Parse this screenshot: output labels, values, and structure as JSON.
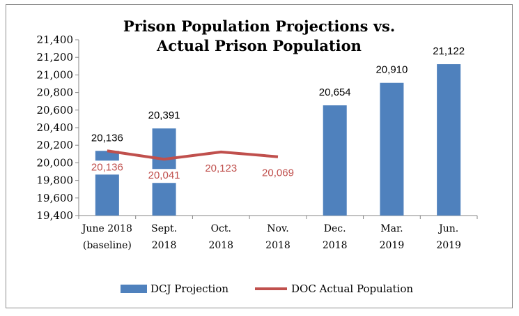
{
  "chart_data": {
    "type": "bar",
    "title_line1": "Prison Population Projections vs.",
    "title_line2": "Actual Prison Population",
    "xlabel": "",
    "ylabel": "",
    "ylim": [
      19400,
      21400
    ],
    "ytick_step": 200,
    "yticks": [
      "19,400",
      "19,600",
      "19,800",
      "20,000",
      "20,200",
      "20,400",
      "20,600",
      "20,800",
      "21,000",
      "21,200",
      "21,400"
    ],
    "categories": [
      {
        "line1": "June 2018",
        "line2": "(baseline)"
      },
      {
        "line1": "Sept.",
        "line2": "2018"
      },
      {
        "line1": "Oct.",
        "line2": "2018"
      },
      {
        "line1": "Nov.",
        "line2": "2018"
      },
      {
        "line1": "Dec.",
        "line2": "2018"
      },
      {
        "line1": "Mar.",
        "line2": "2019"
      },
      {
        "line1": "Jun.",
        "line2": "2019"
      }
    ],
    "series": [
      {
        "name": "DCJ Projection",
        "kind": "bar",
        "color": "#4f81bd",
        "values": [
          20136,
          20391,
          null,
          null,
          20654,
          20910,
          21122
        ],
        "labels": [
          "20,136",
          "20,391",
          "",
          "",
          "20,654",
          "20,910",
          "21,122"
        ]
      },
      {
        "name": "DOC Actual Population",
        "kind": "line",
        "color": "#c0504d",
        "values": [
          20136,
          20041,
          20123,
          20069,
          null,
          null,
          null
        ],
        "labels": [
          "20,136",
          "20,041",
          "20,123",
          "20,069",
          "",
          "",
          ""
        ]
      }
    ],
    "grid": false,
    "legend_position": "bottom"
  }
}
